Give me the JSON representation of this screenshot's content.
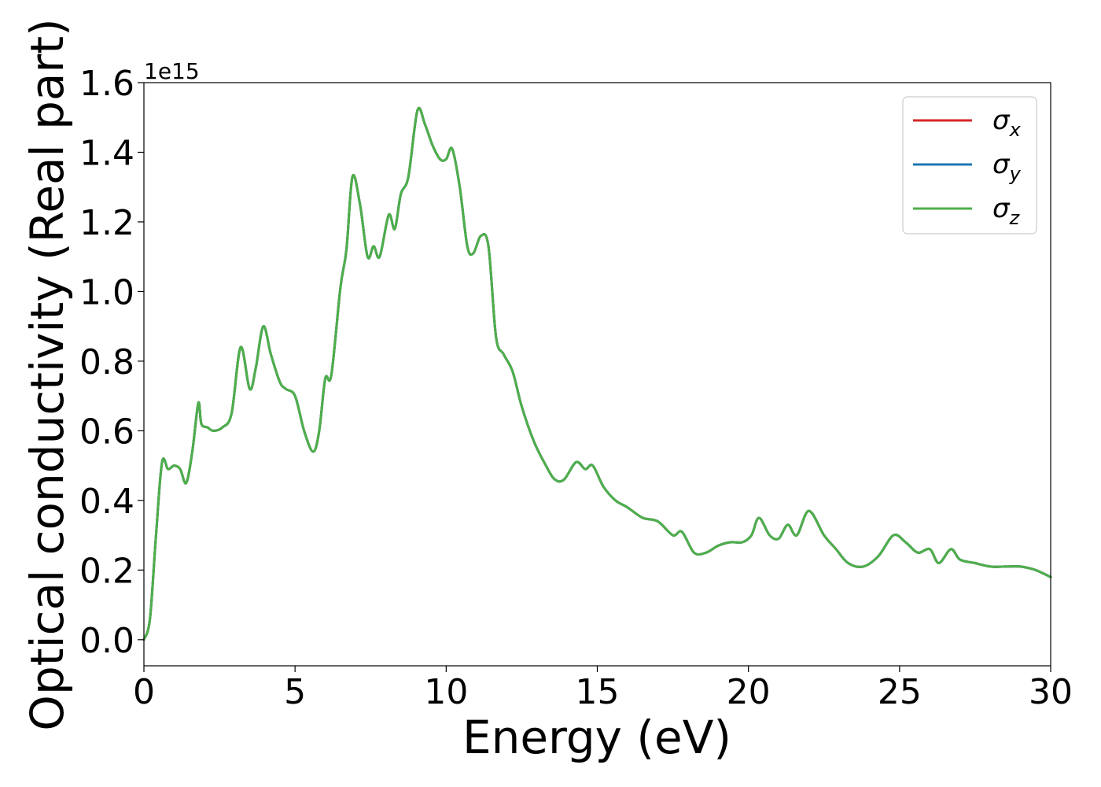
{
  "chart_data": {
    "type": "line",
    "xlabel": "Energy (eV)",
    "ylabel": "Optical conductivity (Real part)",
    "y_offset_label": "1e15",
    "xlim": [
      0,
      30
    ],
    "ylim": [
      -0.075,
      1.6
    ],
    "y_scale_factor": 1000000000000000.0,
    "xticks": [
      0,
      5,
      10,
      15,
      20,
      25,
      30
    ],
    "xtick_labels": [
      "0",
      "5",
      "10",
      "15",
      "20",
      "25",
      "30"
    ],
    "yticks": [
      0.0,
      0.2,
      0.4,
      0.6,
      0.8,
      1.0,
      1.2,
      1.4,
      1.6
    ],
    "ytick_labels": [
      "0.0",
      "0.2",
      "0.4",
      "0.6",
      "0.8",
      "1.0",
      "1.2",
      "1.4",
      "1.6"
    ],
    "grid": false,
    "legend": {
      "position": "top-right",
      "entries": [
        {
          "main": "σ",
          "sub": "x",
          "color": "#d62728"
        },
        {
          "main": "σ",
          "sub": "y",
          "color": "#1f77b4"
        },
        {
          "main": "σ",
          "sub": "z",
          "color": "#4daf4a"
        }
      ]
    },
    "x": [
      0,
      0.2,
      0.4,
      0.6,
      0.8,
      1.0,
      1.2,
      1.4,
      1.6,
      1.8,
      1.9,
      2.1,
      2.3,
      2.6,
      2.9,
      3.2,
      3.5,
      3.7,
      3.95,
      4.2,
      4.5,
      4.7,
      5.0,
      5.3,
      5.6,
      5.8,
      6.0,
      6.2,
      6.5,
      6.7,
      6.9,
      7.15,
      7.4,
      7.6,
      7.8,
      8.1,
      8.3,
      8.5,
      8.75,
      9.05,
      9.3,
      9.55,
      9.8,
      10.0,
      10.2,
      10.45,
      10.7,
      10.9,
      11.15,
      11.4,
      11.65,
      11.9,
      12.2,
      12.5,
      12.9,
      13.3,
      13.6,
      13.9,
      14.3,
      14.6,
      14.85,
      15.2,
      15.6,
      16.0,
      16.5,
      17.0,
      17.5,
      17.8,
      18.2,
      18.6,
      19.0,
      19.4,
      19.8,
      20.1,
      20.35,
      20.7,
      21.0,
      21.3,
      21.6,
      22.0,
      22.5,
      22.9,
      23.3,
      23.8,
      24.3,
      24.8,
      25.2,
      25.6,
      26.0,
      26.3,
      26.7,
      27.0,
      27.5,
      28.0,
      28.5,
      29.0,
      29.5,
      30.0
    ],
    "series": [
      {
        "name": "σx",
        "color": "#d62728",
        "values": [
          0.0,
          0.06,
          0.3,
          0.51,
          0.49,
          0.5,
          0.49,
          0.45,
          0.54,
          0.68,
          0.62,
          0.61,
          0.6,
          0.61,
          0.65,
          0.84,
          0.72,
          0.78,
          0.9,
          0.82,
          0.74,
          0.72,
          0.7,
          0.6,
          0.54,
          0.6,
          0.75,
          0.76,
          1.01,
          1.12,
          1.33,
          1.25,
          1.1,
          1.13,
          1.1,
          1.22,
          1.18,
          1.28,
          1.33,
          1.52,
          1.48,
          1.42,
          1.38,
          1.38,
          1.41,
          1.3,
          1.13,
          1.11,
          1.16,
          1.13,
          0.87,
          0.82,
          0.77,
          0.67,
          0.57,
          0.5,
          0.46,
          0.46,
          0.51,
          0.49,
          0.5,
          0.44,
          0.4,
          0.38,
          0.35,
          0.34,
          0.3,
          0.31,
          0.25,
          0.25,
          0.27,
          0.28,
          0.28,
          0.3,
          0.35,
          0.3,
          0.29,
          0.33,
          0.3,
          0.37,
          0.3,
          0.26,
          0.22,
          0.21,
          0.24,
          0.3,
          0.28,
          0.25,
          0.26,
          0.22,
          0.26,
          0.23,
          0.22,
          0.21,
          0.21,
          0.21,
          0.2,
          0.18
        ]
      },
      {
        "name": "σy",
        "color": "#1f77b4",
        "values": [
          0.0,
          0.06,
          0.3,
          0.51,
          0.49,
          0.5,
          0.49,
          0.45,
          0.54,
          0.68,
          0.62,
          0.61,
          0.6,
          0.61,
          0.65,
          0.84,
          0.72,
          0.78,
          0.9,
          0.82,
          0.74,
          0.72,
          0.7,
          0.6,
          0.54,
          0.6,
          0.75,
          0.76,
          1.01,
          1.12,
          1.33,
          1.25,
          1.1,
          1.13,
          1.1,
          1.22,
          1.18,
          1.28,
          1.33,
          1.52,
          1.48,
          1.42,
          1.38,
          1.38,
          1.41,
          1.3,
          1.13,
          1.11,
          1.16,
          1.13,
          0.87,
          0.82,
          0.77,
          0.67,
          0.57,
          0.5,
          0.46,
          0.46,
          0.51,
          0.49,
          0.5,
          0.44,
          0.4,
          0.38,
          0.35,
          0.34,
          0.3,
          0.31,
          0.25,
          0.25,
          0.27,
          0.28,
          0.28,
          0.3,
          0.35,
          0.3,
          0.29,
          0.33,
          0.3,
          0.37,
          0.3,
          0.26,
          0.22,
          0.21,
          0.24,
          0.3,
          0.28,
          0.25,
          0.26,
          0.22,
          0.26,
          0.23,
          0.22,
          0.21,
          0.21,
          0.21,
          0.2,
          0.18
        ]
      },
      {
        "name": "σz",
        "color": "#4daf4a",
        "values": [
          0.0,
          0.06,
          0.3,
          0.51,
          0.49,
          0.5,
          0.49,
          0.45,
          0.54,
          0.68,
          0.62,
          0.61,
          0.6,
          0.61,
          0.65,
          0.84,
          0.72,
          0.78,
          0.9,
          0.82,
          0.74,
          0.72,
          0.7,
          0.6,
          0.54,
          0.6,
          0.75,
          0.76,
          1.01,
          1.12,
          1.33,
          1.25,
          1.1,
          1.13,
          1.1,
          1.22,
          1.18,
          1.28,
          1.33,
          1.52,
          1.48,
          1.42,
          1.38,
          1.38,
          1.41,
          1.3,
          1.13,
          1.11,
          1.16,
          1.13,
          0.87,
          0.82,
          0.77,
          0.67,
          0.57,
          0.5,
          0.46,
          0.46,
          0.51,
          0.49,
          0.5,
          0.44,
          0.4,
          0.38,
          0.35,
          0.34,
          0.3,
          0.31,
          0.25,
          0.25,
          0.27,
          0.28,
          0.28,
          0.3,
          0.35,
          0.3,
          0.29,
          0.33,
          0.3,
          0.37,
          0.3,
          0.26,
          0.22,
          0.21,
          0.24,
          0.3,
          0.28,
          0.25,
          0.26,
          0.22,
          0.26,
          0.23,
          0.22,
          0.21,
          0.21,
          0.21,
          0.2,
          0.18
        ]
      }
    ]
  }
}
